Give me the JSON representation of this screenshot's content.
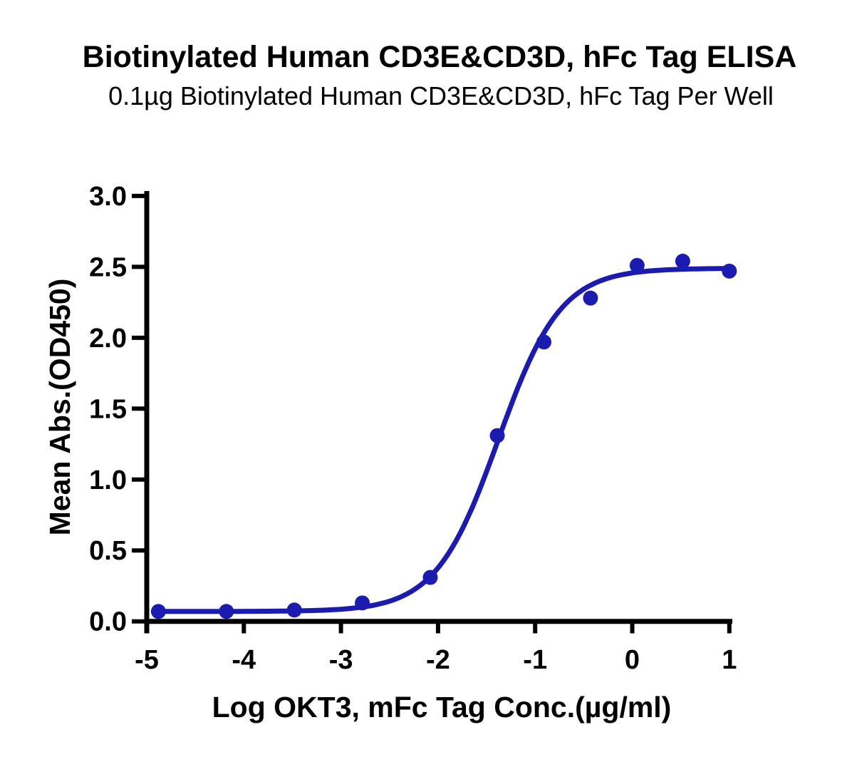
{
  "page": {
    "background_color": "#ffffff",
    "text_color": "#000000"
  },
  "chart_data": {
    "type": "scatter",
    "subtype": "4PL dose-response curve with fitted sigmoid line",
    "title": "Biotinylated Human CD3E&CD3D, hFc Tag ELISA",
    "subtitle": "0.1µg Biotinylated Human CD3E&CD3D, hFc Tag Per Well",
    "xlabel": "Log OKT3, mFc Tag Conc.(µg/ml)",
    "ylabel": "Mean Abs.(OD450)",
    "xlim": [
      -5,
      1
    ],
    "ylim": [
      0,
      3
    ],
    "x_ticks": [
      -5,
      -4,
      -3,
      -2,
      -1,
      0,
      1
    ],
    "x_tick_labels": [
      "-5",
      "-4",
      "-3",
      "-2",
      "-1",
      "0",
      "1"
    ],
    "y_ticks": [
      0,
      0.5,
      1,
      1.5,
      2,
      2.5,
      3
    ],
    "y_tick_labels": [
      "0.0",
      "0.5",
      "1.0",
      "1.5",
      "2.0",
      "2.5",
      "3.0"
    ],
    "grid": false,
    "legend_position": "none",
    "axis_color": "#000000",
    "series": [
      {
        "marker": "circle",
        "color": "#1b1bb0",
        "x": [
          -4.88,
          -4.18,
          -3.48,
          -2.78,
          -2.08,
          -1.39,
          -0.91,
          -0.43,
          0.05,
          0.52,
          1.0
        ],
        "y": [
          0.07,
          0.07,
          0.08,
          0.13,
          0.31,
          1.31,
          1.97,
          2.28,
          2.51,
          2.54,
          2.47
        ],
        "fit_4pl": {
          "bottom": 0.07,
          "top": 2.49,
          "log_ec50": -1.38,
          "hill": 1.35
        }
      }
    ]
  }
}
